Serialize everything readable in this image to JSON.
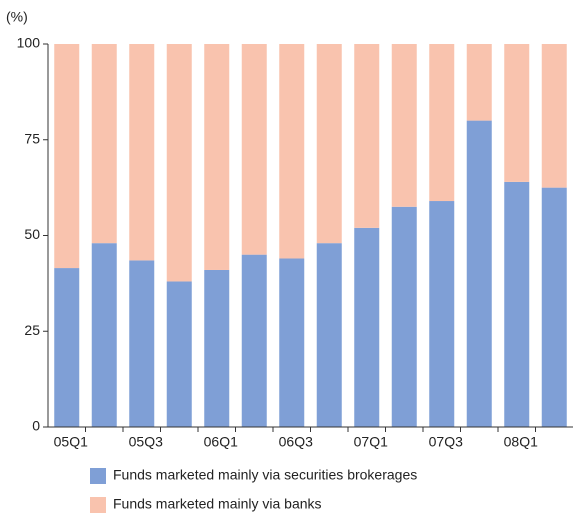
{
  "chart_data": {
    "type": "stacked_bar",
    "y_label": "(%)",
    "categories": [
      "05Q1",
      null,
      "05Q3",
      null,
      "06Q1",
      null,
      "06Q3",
      null,
      "07Q1",
      null,
      "07Q3",
      null,
      "08Q1",
      null
    ],
    "series": [
      {
        "name": "Funds marketed mainly via securities brokerages",
        "color": "#7f9fd6",
        "values": [
          41.5,
          48,
          43.5,
          38,
          41,
          45,
          44,
          48,
          52,
          57.5,
          59,
          80,
          64,
          62.5
        ]
      },
      {
        "name": "Funds marketed mainly via banks",
        "color": "#f9c3ae",
        "values": [
          58.5,
          52,
          56.5,
          62,
          59,
          55,
          56,
          52,
          48,
          42.5,
          41,
          20,
          36,
          37.5
        ]
      }
    ],
    "ylim": [
      0,
      100
    ],
    "yticks": [
      0,
      25,
      50,
      75,
      100
    ]
  }
}
